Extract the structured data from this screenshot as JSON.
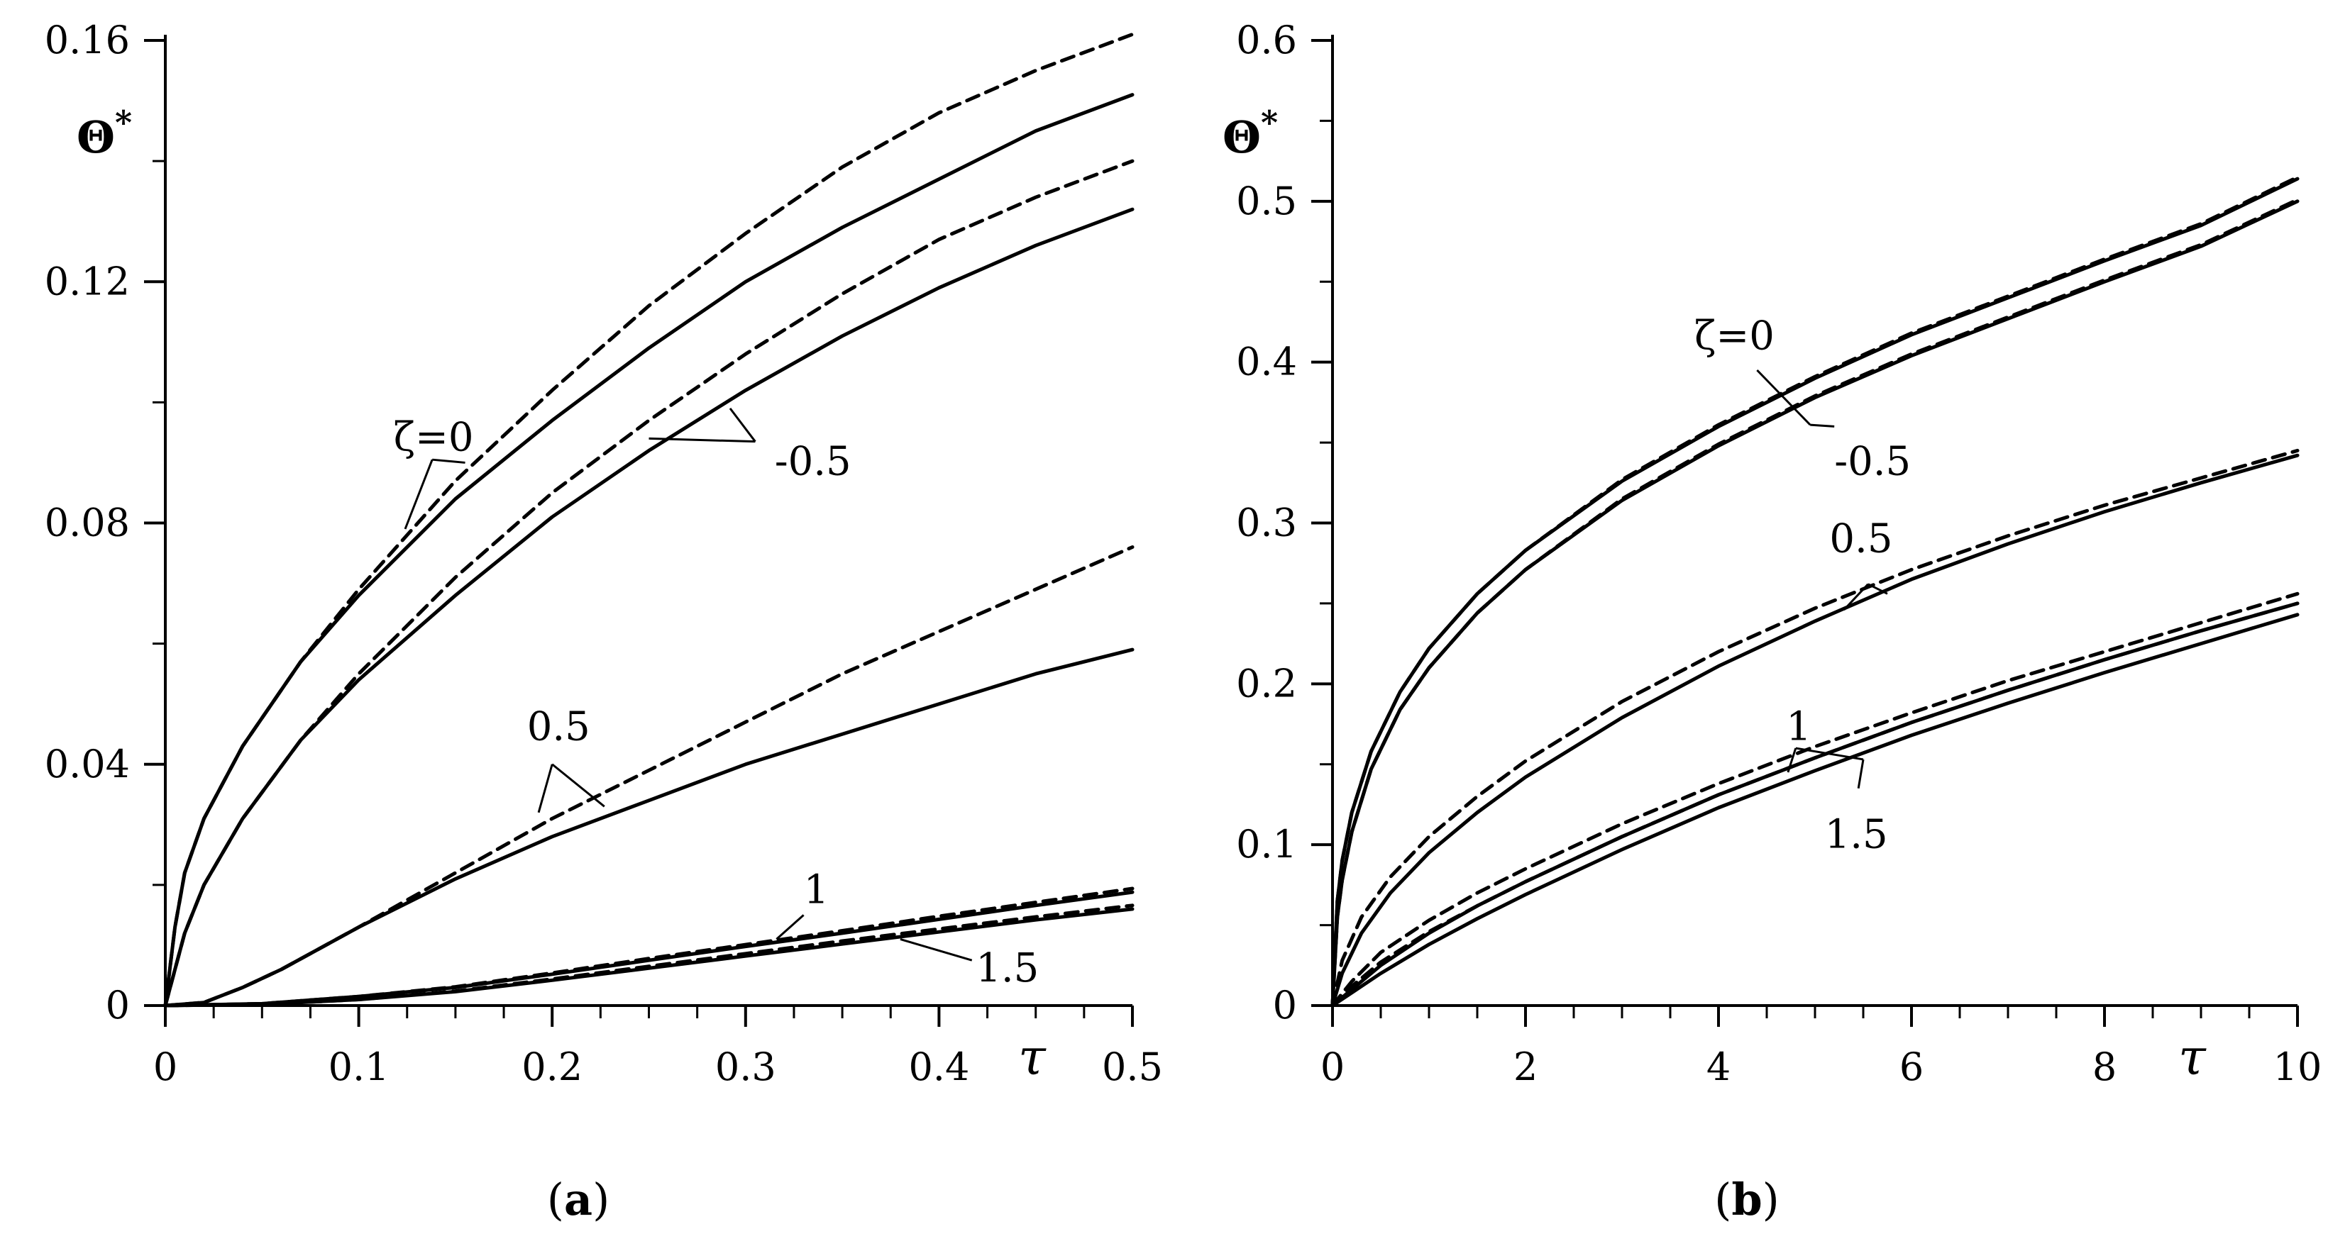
{
  "chart_data": [
    {
      "type": "line",
      "panel_label_letter": "a",
      "xlabel": "τ",
      "ylabel_base": "Θ",
      "ylabel_sup": "*",
      "xlim": [
        0,
        0.5
      ],
      "ylim": [
        0,
        0.16
      ],
      "xticks": [
        0,
        0.1,
        0.2,
        0.3,
        0.4,
        0.5
      ],
      "xtick_labels": [
        "0",
        "0.1",
        "0.2",
        "0.3",
        "0.4",
        "0.5"
      ],
      "yticks": [
        0,
        0.04,
        0.08,
        0.12,
        0.16
      ],
      "ytick_labels": [
        "0",
        "0.04",
        "0.08",
        "0.12",
        "0.16"
      ],
      "series": [
        {
          "name": "ζ=0 solid",
          "style": "solid",
          "x": [
            0,
            0.005,
            0.01,
            0.02,
            0.04,
            0.07,
            0.1,
            0.15,
            0.2,
            0.25,
            0.3,
            0.35,
            0.4,
            0.45,
            0.5
          ],
          "y": [
            0,
            0.013,
            0.022,
            0.031,
            0.043,
            0.057,
            0.068,
            0.084,
            0.097,
            0.109,
            0.12,
            0.129,
            0.137,
            0.145,
            0.151
          ]
        },
        {
          "name": "ζ=0 dashed",
          "style": "dashed",
          "x": [
            0,
            0.005,
            0.01,
            0.02,
            0.04,
            0.07,
            0.1,
            0.15,
            0.2,
            0.25,
            0.3,
            0.35,
            0.4,
            0.45,
            0.5
          ],
          "y": [
            0,
            0.013,
            0.022,
            0.031,
            0.043,
            0.057,
            0.069,
            0.087,
            0.102,
            0.116,
            0.128,
            0.139,
            0.148,
            0.155,
            0.161
          ]
        },
        {
          "name": "ζ=-0.5 solid",
          "style": "solid",
          "x": [
            0,
            0.01,
            0.02,
            0.04,
            0.07,
            0.1,
            0.15,
            0.2,
            0.25,
            0.3,
            0.35,
            0.4,
            0.45,
            0.5
          ],
          "y": [
            0,
            0.012,
            0.02,
            0.031,
            0.044,
            0.054,
            0.068,
            0.081,
            0.092,
            0.102,
            0.111,
            0.119,
            0.126,
            0.132
          ]
        },
        {
          "name": "ζ=-0.5 dashed",
          "style": "dashed",
          "x": [
            0,
            0.01,
            0.02,
            0.04,
            0.07,
            0.1,
            0.15,
            0.2,
            0.25,
            0.3,
            0.35,
            0.4,
            0.45,
            0.5
          ],
          "y": [
            0,
            0.012,
            0.02,
            0.031,
            0.044,
            0.055,
            0.071,
            0.085,
            0.097,
            0.108,
            0.118,
            0.127,
            0.134,
            0.14
          ]
        },
        {
          "name": "ζ=0.5 solid",
          "style": "solid",
          "x": [
            0,
            0.02,
            0.04,
            0.06,
            0.1,
            0.15,
            0.2,
            0.25,
            0.3,
            0.35,
            0.4,
            0.45,
            0.5
          ],
          "y": [
            0,
            0.0005,
            0.003,
            0.006,
            0.013,
            0.021,
            0.028,
            0.034,
            0.04,
            0.045,
            0.05,
            0.055,
            0.059
          ]
        },
        {
          "name": "ζ=0.5 dashed",
          "style": "dashed",
          "x": [
            0,
            0.02,
            0.04,
            0.06,
            0.1,
            0.15,
            0.2,
            0.25,
            0.3,
            0.35,
            0.4,
            0.45,
            0.5
          ],
          "y": [
            0,
            0.0005,
            0.003,
            0.006,
            0.013,
            0.022,
            0.031,
            0.039,
            0.047,
            0.055,
            0.062,
            0.069,
            0.076
          ]
        },
        {
          "name": "ζ=1 solid",
          "style": "solid",
          "x": [
            0,
            0.05,
            0.1,
            0.15,
            0.2,
            0.25,
            0.3,
            0.35,
            0.4,
            0.45,
            0.5
          ],
          "y": [
            0,
            0.0003,
            0.0015,
            0.003,
            0.0052,
            0.0075,
            0.0098,
            0.012,
            0.0143,
            0.0166,
            0.0188
          ]
        },
        {
          "name": "ζ=1 dashed",
          "style": "dashed",
          "x": [
            0,
            0.05,
            0.1,
            0.15,
            0.2,
            0.25,
            0.3,
            0.35,
            0.4,
            0.45,
            0.5
          ],
          "y": [
            0,
            0.0003,
            0.0015,
            0.0031,
            0.0054,
            0.0078,
            0.0101,
            0.0124,
            0.0148,
            0.0171,
            0.0194
          ]
        },
        {
          "name": "ζ=1.5 solid",
          "style": "solid",
          "x": [
            0,
            0.05,
            0.1,
            0.15,
            0.2,
            0.25,
            0.3,
            0.35,
            0.4,
            0.45,
            0.5
          ],
          "y": [
            0,
            0.0002,
            0.001,
            0.0023,
            0.0042,
            0.0062,
            0.0082,
            0.0102,
            0.0122,
            0.0142,
            0.016
          ]
        },
        {
          "name": "ζ=1.5 dashed",
          "style": "dashed",
          "x": [
            0,
            0.05,
            0.1,
            0.15,
            0.2,
            0.25,
            0.3,
            0.35,
            0.4,
            0.45,
            0.5
          ],
          "y": [
            0,
            0.0002,
            0.001,
            0.0024,
            0.0044,
            0.0065,
            0.0086,
            0.0107,
            0.0127,
            0.0147,
            0.0166
          ]
        }
      ],
      "annotations": [
        {
          "text": "ζ=0",
          "at": [
            0.118,
            0.092
          ],
          "leaders": [
            [
              0.138,
              0.0905,
              0.124,
              0.079
            ],
            [
              0.138,
              0.0905,
              0.155,
              0.09
            ]
          ]
        },
        {
          "text": "-0.5",
          "at": [
            0.315,
            0.088
          ],
          "leaders": [
            [
              0.305,
              0.0935,
              0.25,
              0.094
            ],
            [
              0.305,
              0.0935,
              0.292,
              0.099
            ]
          ]
        },
        {
          "text": "0.5",
          "at": [
            0.187,
            0.044
          ],
          "leaders": [
            [
              0.2,
              0.04,
              0.193,
              0.032
            ],
            [
              0.2,
              0.04,
              0.227,
              0.033
            ]
          ]
        },
        {
          "text": "1",
          "at": [
            0.33,
            0.017
          ],
          "leaders": [
            [
              0.33,
              0.015,
              0.316,
              0.011
            ]
          ]
        },
        {
          "text": "1.5",
          "at": [
            0.419,
            0.004
          ],
          "leaders": [
            [
              0.417,
              0.0075,
              0.38,
              0.011
            ]
          ]
        }
      ]
    },
    {
      "type": "line",
      "panel_label_letter": "b",
      "xlabel": "τ",
      "ylabel_base": "Θ",
      "ylabel_sup": "*",
      "xlim": [
        0,
        10
      ],
      "ylim": [
        0,
        0.6
      ],
      "xticks": [
        0,
        2,
        4,
        6,
        8,
        10
      ],
      "xtick_labels": [
        "0",
        "2",
        "4",
        "6",
        "8",
        "10"
      ],
      "yticks": [
        0,
        0.1,
        0.2,
        0.3,
        0.4,
        0.5,
        0.6
      ],
      "ytick_labels": [
        "0",
        "0.1",
        "0.2",
        "0.3",
        "0.4",
        "0.5",
        "0.6"
      ],
      "series": [
        {
          "name": "ζ=0 solid",
          "style": "solid",
          "x": [
            0,
            0.05,
            0.1,
            0.2,
            0.4,
            0.7,
            1,
            1.5,
            2,
            3,
            4,
            5,
            6,
            7,
            8,
            9,
            10
          ],
          "y": [
            0,
            0.065,
            0.09,
            0.12,
            0.158,
            0.195,
            0.222,
            0.256,
            0.283,
            0.326,
            0.36,
            0.39,
            0.417,
            0.44,
            0.463,
            0.485,
            0.514
          ]
        },
        {
          "name": "ζ=0 dashed",
          "style": "dashed",
          "x": [
            0,
            0.05,
            0.1,
            0.2,
            0.4,
            0.7,
            1,
            1.5,
            2,
            3,
            4,
            5,
            6,
            7,
            8,
            9,
            10
          ],
          "y": [
            0,
            0.065,
            0.09,
            0.12,
            0.158,
            0.195,
            0.222,
            0.256,
            0.283,
            0.327,
            0.361,
            0.391,
            0.418,
            0.441,
            0.464,
            0.486,
            0.515
          ]
        },
        {
          "name": "ζ=-0.5 solid",
          "style": "solid",
          "x": [
            0,
            0.05,
            0.1,
            0.2,
            0.4,
            0.7,
            1,
            1.5,
            2,
            3,
            4,
            5,
            6,
            7,
            8,
            9,
            10
          ],
          "y": [
            0,
            0.055,
            0.078,
            0.108,
            0.147,
            0.184,
            0.21,
            0.244,
            0.271,
            0.314,
            0.348,
            0.378,
            0.404,
            0.427,
            0.45,
            0.472,
            0.5
          ]
        },
        {
          "name": "ζ=-0.5 dashed",
          "style": "dashed",
          "x": [
            0,
            0.05,
            0.1,
            0.2,
            0.4,
            0.7,
            1,
            1.5,
            2,
            3,
            4,
            5,
            6,
            7,
            8,
            9,
            10
          ],
          "y": [
            0,
            0.055,
            0.078,
            0.108,
            0.147,
            0.184,
            0.21,
            0.244,
            0.271,
            0.315,
            0.349,
            0.379,
            0.405,
            0.428,
            0.451,
            0.473,
            0.501
          ]
        },
        {
          "name": "ζ=0.5 solid",
          "style": "solid",
          "x": [
            0,
            0.1,
            0.3,
            0.6,
            1,
            1.5,
            2,
            3,
            4,
            5,
            6,
            7,
            8,
            9,
            10
          ],
          "y": [
            0,
            0.02,
            0.045,
            0.07,
            0.095,
            0.12,
            0.142,
            0.179,
            0.211,
            0.239,
            0.265,
            0.287,
            0.307,
            0.325,
            0.342
          ]
        },
        {
          "name": "ζ=0.5 dashed",
          "style": "dashed",
          "x": [
            0,
            0.1,
            0.3,
            0.6,
            1,
            1.5,
            2,
            3,
            4,
            5,
            6,
            7,
            8,
            9,
            10
          ],
          "y": [
            0,
            0.028,
            0.055,
            0.08,
            0.105,
            0.13,
            0.152,
            0.189,
            0.22,
            0.247,
            0.271,
            0.292,
            0.311,
            0.328,
            0.345
          ]
        },
        {
          "name": "ζ=1 solid",
          "style": "solid",
          "x": [
            0,
            0.2,
            0.5,
            1,
            1.5,
            2,
            3,
            4,
            5,
            6,
            7,
            8,
            9,
            10
          ],
          "y": [
            0,
            0.01,
            0.025,
            0.045,
            0.062,
            0.077,
            0.105,
            0.131,
            0.154,
            0.176,
            0.196,
            0.215,
            0.233,
            0.25
          ]
        },
        {
          "name": "ζ=1 dashed",
          "style": "dashed",
          "x": [
            0,
            0.2,
            0.5,
            1,
            1.5,
            2,
            3,
            4,
            5,
            6,
            7,
            8,
            9,
            10
          ],
          "y": [
            0,
            0.015,
            0.033,
            0.053,
            0.07,
            0.085,
            0.113,
            0.138,
            0.161,
            0.182,
            0.202,
            0.22,
            0.238,
            0.256
          ]
        },
        {
          "name": "ζ=1.5 solid",
          "style": "solid",
          "x": [
            0,
            0.2,
            0.5,
            1,
            1.5,
            2,
            3,
            4,
            5,
            6,
            7,
            8,
            9,
            10
          ],
          "y": [
            0,
            0.008,
            0.02,
            0.038,
            0.054,
            0.069,
            0.097,
            0.123,
            0.146,
            0.168,
            0.188,
            0.207,
            0.225,
            0.243
          ]
        },
        {
          "name": "ζ=1.5 dashed",
          "style": "dashed",
          "x": [
            0,
            0.2,
            0.5,
            1,
            1.5,
            2,
            3,
            4,
            5,
            6,
            7,
            8,
            9,
            10
          ],
          "y": [
            0,
            0.012,
            0.027,
            0.046,
            0.062,
            0.077,
            0.105,
            0.131,
            0.154,
            0.176,
            0.196,
            0.215,
            0.233,
            0.25
          ]
        }
      ],
      "annotations": [
        {
          "text": "ζ=0",
          "at": [
            3.75,
            0.408
          ],
          "leaders": [
            [
              4.4,
              0.395,
              4.95,
              0.361
            ]
          ]
        },
        {
          "text": "-0.5",
          "at": [
            5.2,
            0.33
          ],
          "leaders": [
            [
              5.2,
              0.36,
              4.95,
              0.361
            ]
          ]
        },
        {
          "text": "0.5",
          "at": [
            5.15,
            0.282
          ],
          "leaders": [
            [
              5.55,
              0.262,
              5.3,
              0.246
            ],
            [
              5.55,
              0.262,
              5.75,
              0.256
            ]
          ]
        },
        {
          "text": "1",
          "at": [
            4.7,
            0.165
          ],
          "leaders": [
            [
              4.8,
              0.16,
              4.72,
              0.145
            ],
            [
              4.8,
              0.16,
              5.5,
              0.153
            ]
          ]
        },
        {
          "text": "1.5",
          "at": [
            5.1,
            0.098
          ],
          "leaders": [
            [
              5.45,
              0.135,
              5.5,
              0.153
            ]
          ]
        }
      ]
    }
  ]
}
